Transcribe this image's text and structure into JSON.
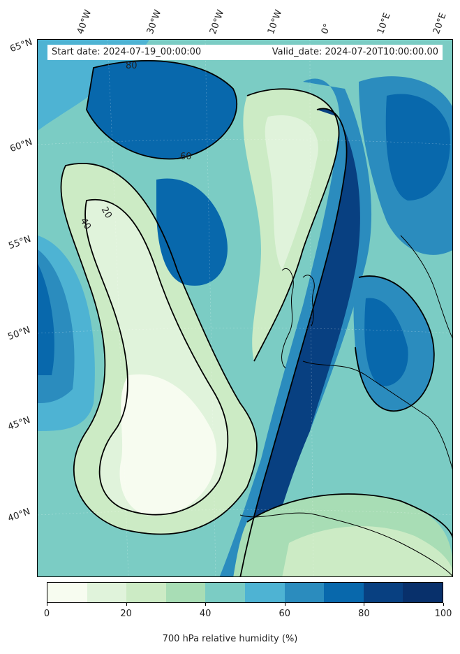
{
  "header": {
    "start_date": "Start date: 2024-07-19_00:00:00",
    "valid_date": "Valid_date: 2024-07-20T10:00:00.00"
  },
  "axes": {
    "lon_labels": [
      "40°W",
      "30°W",
      "20°W",
      "10°W",
      "0°",
      "10°E",
      "20°E"
    ],
    "lat_labels": [
      "65°N",
      "60°N",
      "55°N",
      "50°N",
      "45°N",
      "40°N"
    ]
  },
  "contour_labels": [
    "20",
    "40",
    "60",
    "80"
  ],
  "colorbar": {
    "label": "700 hPa relative humidity (%)",
    "ticks": [
      "0",
      "20",
      "40",
      "60",
      "80",
      "100"
    ],
    "colors": [
      "#f7fcf0",
      "#e0f3db",
      "#ccebc5",
      "#a8ddb5",
      "#7bccc4",
      "#4eb3d3",
      "#2b8cbe",
      "#0868ac",
      "#084081",
      "#08306b"
    ]
  }
}
